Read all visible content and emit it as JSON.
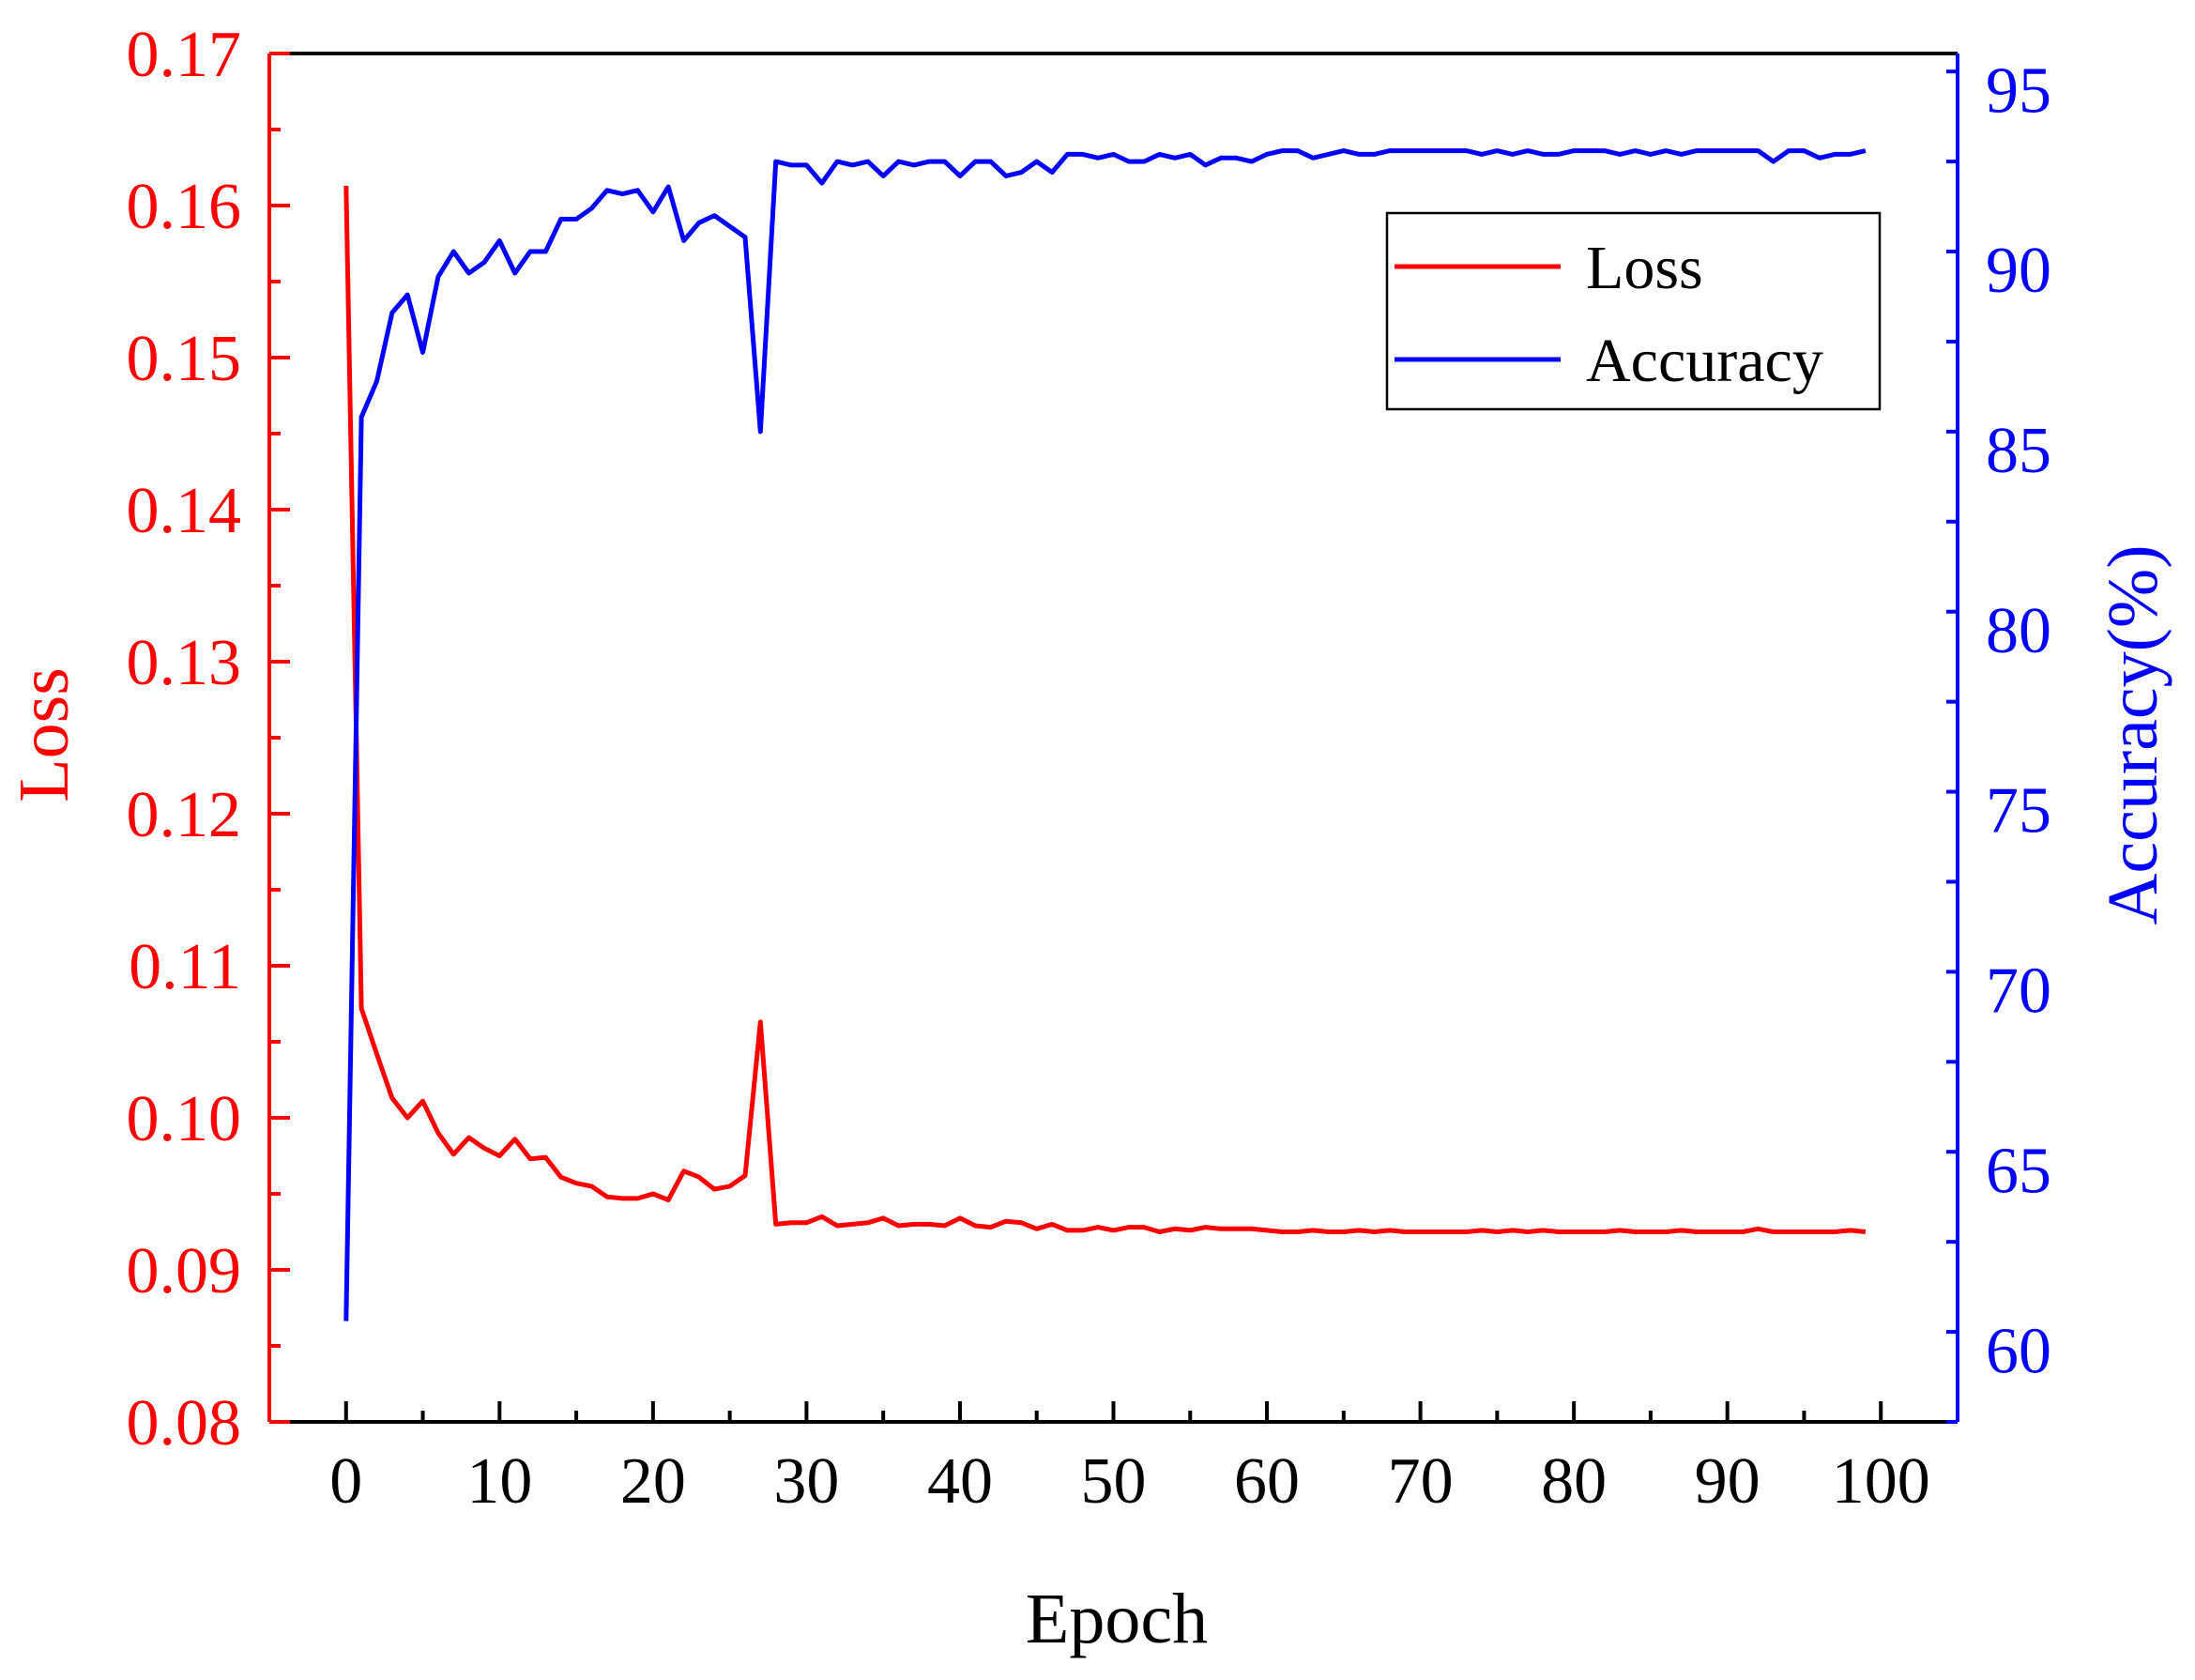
{
  "colors": {
    "loss": "#ff0000",
    "accuracy": "#0000ff",
    "axis": "#000000"
  },
  "chart_data": {
    "type": "line",
    "title": "",
    "xlabel": "Epoch",
    "ylabel_left": "Loss",
    "ylabel_right": "Accuracy(%)",
    "xlim": [
      -5,
      105
    ],
    "ylim_left": [
      0.08,
      0.17
    ],
    "ylim_right": [
      58,
      96
    ],
    "x_ticks": [
      "0",
      "10",
      "20",
      "30",
      "40",
      "50",
      "60",
      "70",
      "80",
      "90",
      "100"
    ],
    "y_left_ticks": [
      "0.08",
      "0.09",
      "0.10",
      "0.11",
      "0.12",
      "0.13",
      "0.14",
      "0.15",
      "0.16",
      "0.17"
    ],
    "y_right_ticks": [
      "60",
      "65",
      "70",
      "75",
      "80",
      "85",
      "90",
      "95"
    ],
    "legend": {
      "position": "top-right",
      "entries": [
        "Loss",
        "Accuracy"
      ]
    },
    "grid": false,
    "series": [
      {
        "name": "Loss",
        "axis": "left",
        "color": "#ff0000",
        "x": [
          0,
          1,
          2,
          3,
          4,
          5,
          6,
          7,
          8,
          9,
          10,
          11,
          12,
          13,
          14,
          15,
          16,
          17,
          18,
          19,
          20,
          21,
          22,
          23,
          24,
          25,
          26,
          27,
          28,
          29,
          30,
          31,
          32,
          33,
          34,
          35,
          36,
          37,
          38,
          39,
          40,
          41,
          42,
          43,
          44,
          45,
          46,
          47,
          48,
          49,
          50,
          51,
          52,
          53,
          54,
          55,
          56,
          57,
          58,
          59,
          60,
          61,
          62,
          63,
          64,
          65,
          66,
          67,
          68,
          69,
          70,
          71,
          72,
          73,
          74,
          75,
          76,
          77,
          78,
          79,
          80,
          81,
          82,
          83,
          84,
          85,
          86,
          87,
          88,
          89,
          90,
          91,
          92,
          93,
          94,
          95,
          96,
          97,
          98,
          99
        ],
        "values": [
          0.1613,
          0.1072,
          0.1042,
          0.1013,
          0.1,
          0.1011,
          0.099,
          0.0976,
          0.0987,
          0.098,
          0.0975,
          0.0986,
          0.0973,
          0.0974,
          0.0961,
          0.0957,
          0.0955,
          0.0948,
          0.0947,
          0.0947,
          0.095,
          0.0946,
          0.0965,
          0.0961,
          0.0953,
          0.0955,
          0.0962,
          0.1063,
          0.093,
          0.0931,
          0.0931,
          0.0935,
          0.0929,
          0.093,
          0.0931,
          0.0934,
          0.0929,
          0.093,
          0.093,
          0.0929,
          0.0934,
          0.0929,
          0.0928,
          0.0932,
          0.0931,
          0.0927,
          0.093,
          0.0926,
          0.0926,
          0.0928,
          0.0926,
          0.0928,
          0.0928,
          0.0925,
          0.0927,
          0.0926,
          0.0928,
          0.0927,
          0.0927,
          0.0927,
          0.0926,
          0.0925,
          0.0925,
          0.0926,
          0.0925,
          0.0925,
          0.0926,
          0.0925,
          0.0926,
          0.0925,
          0.0925,
          0.0925,
          0.0925,
          0.0925,
          0.0926,
          0.0925,
          0.0926,
          0.0925,
          0.0926,
          0.0925,
          0.0925,
          0.0925,
          0.0925,
          0.0926,
          0.0925,
          0.0925,
          0.0925,
          0.0926,
          0.0925,
          0.0925,
          0.0925,
          0.0925,
          0.0927,
          0.0925,
          0.0925,
          0.0925,
          0.0925,
          0.0925,
          0.0926,
          0.0925
        ]
      },
      {
        "name": "Accuracy",
        "axis": "right",
        "color": "#0000ff",
        "x": [
          0,
          1,
          2,
          3,
          4,
          5,
          6,
          7,
          8,
          9,
          10,
          11,
          12,
          13,
          14,
          15,
          16,
          17,
          18,
          19,
          20,
          21,
          22,
          23,
          24,
          25,
          26,
          27,
          28,
          29,
          30,
          31,
          32,
          33,
          34,
          35,
          36,
          37,
          38,
          39,
          40,
          41,
          42,
          43,
          44,
          45,
          46,
          47,
          48,
          49,
          50,
          51,
          52,
          53,
          54,
          55,
          56,
          57,
          58,
          59,
          60,
          61,
          62,
          63,
          64,
          65,
          66,
          67,
          68,
          69,
          70,
          71,
          72,
          73,
          74,
          75,
          76,
          77,
          78,
          79,
          80,
          81,
          82,
          83,
          84,
          85,
          86,
          87,
          88,
          89,
          90,
          91,
          92,
          93,
          94,
          95,
          96,
          97,
          98,
          99
        ],
        "values": [
          60.8,
          85.9,
          86.9,
          88.8,
          89.3,
          87.7,
          89.8,
          90.5,
          89.9,
          90.2,
          90.8,
          89.9,
          90.5,
          90.5,
          91.4,
          91.4,
          91.7,
          92.2,
          92.1,
          92.2,
          91.6,
          92.3,
          90.8,
          91.3,
          91.5,
          91.2,
          90.9,
          85.5,
          93.0,
          92.9,
          92.9,
          92.4,
          93.0,
          92.9,
          93.0,
          92.6,
          93.0,
          92.9,
          93.0,
          93.0,
          92.6,
          93.0,
          93.0,
          92.6,
          92.7,
          93.0,
          92.7,
          93.2,
          93.2,
          93.1,
          93.2,
          93.0,
          93.0,
          93.2,
          93.1,
          93.2,
          92.9,
          93.1,
          93.1,
          93.0,
          93.2,
          93.3,
          93.3,
          93.1,
          93.2,
          93.3,
          93.2,
          93.2,
          93.3,
          93.3,
          93.3,
          93.3,
          93.3,
          93.3,
          93.2,
          93.3,
          93.2,
          93.3,
          93.2,
          93.2,
          93.3,
          93.3,
          93.3,
          93.2,
          93.3,
          93.2,
          93.3,
          93.2,
          93.3,
          93.3,
          93.3,
          93.3,
          93.3,
          93.0,
          93.3,
          93.3,
          93.1,
          93.2,
          93.2,
          93.3
        ]
      }
    ]
  }
}
